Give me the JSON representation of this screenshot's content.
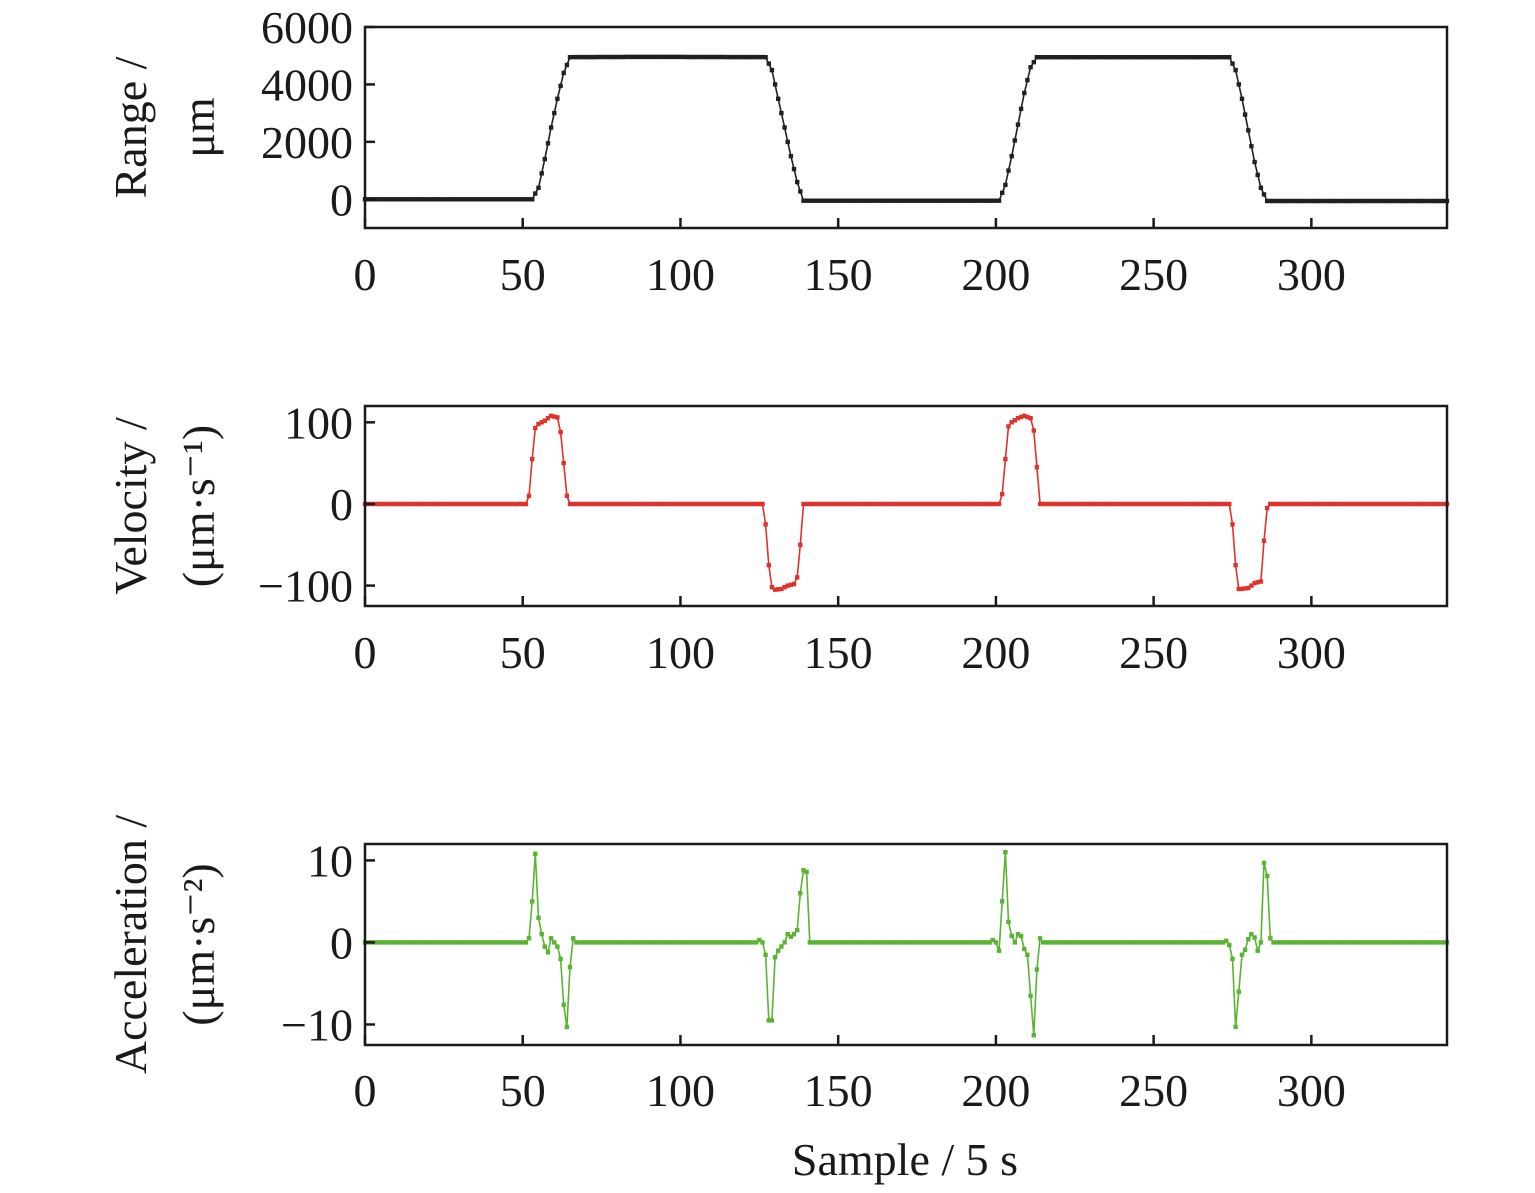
{
  "chart_data": [
    {
      "type": "line",
      "color": "#231f20",
      "ylabel_line1": "Range /",
      "ylabel_line2": "μm",
      "xlabel": "",
      "xlim": [
        0,
        343
      ],
      "ylim": [
        -1000,
        6000
      ],
      "xticks": [
        0,
        50,
        100,
        150,
        200,
        250,
        300
      ],
      "xtick_labels": [
        "0",
        "50",
        "100",
        "150",
        "200",
        "250",
        "300"
      ],
      "yticks": [
        0,
        2000,
        4000,
        6000
      ],
      "ytick_labels": [
        "0",
        "2000",
        "4000",
        "6000"
      ],
      "grid": false,
      "x": [
        0,
        53,
        55,
        57,
        59,
        61,
        63,
        65,
        90,
        127,
        129,
        131,
        133,
        135,
        137,
        139,
        170,
        201,
        203,
        205,
        207,
        209,
        211,
        213,
        245,
        274,
        276,
        278,
        280,
        282,
        284,
        286,
        343
      ],
      "values": [
        0,
        0,
        400,
        1400,
        2500,
        3500,
        4400,
        4950,
        4960,
        4950,
        4500,
        3500,
        2500,
        1500,
        600,
        -50,
        -50,
        -50,
        500,
        1500,
        2600,
        3700,
        4600,
        4950,
        4950,
        4950,
        4500,
        3500,
        2400,
        1300,
        400,
        -60,
        -60
      ]
    },
    {
      "type": "line",
      "color": "#e0322d",
      "ylabel_line1": "Velocity /",
      "ylabel_line2": "(μm·s⁻¹)",
      "xlabel": "",
      "xlim": [
        0,
        343
      ],
      "ylim": [
        -125,
        120
      ],
      "xticks": [
        0,
        50,
        100,
        150,
        200,
        250,
        300
      ],
      "xtick_labels": [
        "0",
        "50",
        "100",
        "150",
        "200",
        "250",
        "300"
      ],
      "yticks": [
        -100,
        0,
        100
      ],
      "ytick_labels": [
        "−100",
        "0",
        "100"
      ],
      "grid": false,
      "x": [
        0,
        51,
        52,
        53,
        54,
        55,
        57,
        59,
        61,
        62,
        63,
        64,
        65,
        126,
        127,
        128,
        129,
        130,
        132,
        134,
        136,
        137,
        138,
        139,
        201,
        202,
        203,
        204,
        205,
        207,
        209,
        211,
        212,
        213,
        214,
        274,
        275,
        276,
        277,
        278,
        280,
        282,
        284,
        285,
        286,
        287,
        343
      ],
      "values": [
        0,
        0,
        10,
        55,
        93,
        98,
        102,
        108,
        106,
        88,
        50,
        10,
        0,
        0,
        -25,
        -75,
        -102,
        -105,
        -104,
        -100,
        -98,
        -90,
        -50,
        0,
        0,
        12,
        55,
        95,
        100,
        105,
        108,
        105,
        90,
        45,
        0,
        0,
        -25,
        -75,
        -104,
        -104,
        -103,
        -97,
        -95,
        -45,
        -5,
        0,
        0
      ]
    },
    {
      "type": "line",
      "color": "#5ab432",
      "ylabel_line1": "Acceleration /",
      "ylabel_line2": "(μm·s⁻²)",
      "xlabel": "Sample / 5 s",
      "xlim": [
        0,
        343
      ],
      "ylim": [
        -12.5,
        12
      ],
      "xticks": [
        0,
        50,
        100,
        150,
        200,
        250,
        300
      ],
      "xtick_labels": [
        "0",
        "50",
        "100",
        "150",
        "200",
        "250",
        "300"
      ],
      "yticks": [
        -10,
        0,
        10
      ],
      "ytick_labels": [
        "−10",
        "0",
        "10"
      ],
      "grid": false,
      "x": [
        0,
        51,
        52,
        53,
        54,
        55,
        56,
        57,
        58,
        59,
        60,
        61,
        62,
        63,
        64,
        65,
        66,
        67,
        124,
        125,
        126,
        127,
        128,
        129,
        130,
        131,
        132,
        133,
        134,
        135,
        136,
        137,
        138,
        139,
        140,
        141,
        198,
        199,
        200,
        201,
        202,
        203,
        204,
        205,
        206,
        207,
        208,
        209,
        210,
        211,
        212,
        213,
        214,
        215,
        272,
        273,
        274,
        275,
        276,
        277,
        278,
        279,
        280,
        281,
        282,
        283,
        284,
        285,
        286,
        287,
        288,
        343
      ],
      "values": [
        0,
        0,
        0.5,
        5,
        10.8,
        3,
        1,
        -0.5,
        -1.2,
        0.5,
        0,
        -0.5,
        -2,
        -7.6,
        -10.3,
        -3,
        0.5,
        0,
        0,
        0.3,
        0,
        -1.5,
        -9.5,
        -9.5,
        -1.8,
        -1,
        -0.5,
        0,
        1,
        0.7,
        1,
        1.5,
        6,
        8.8,
        8.6,
        0,
        0,
        0.3,
        0,
        -1,
        5,
        11,
        2.5,
        0.8,
        0,
        1,
        0.8,
        -0.8,
        -1.5,
        -6.5,
        -11.3,
        -3.3,
        0.5,
        0,
        0,
        0.2,
        -0.3,
        -2,
        -10.3,
        -6,
        -1.5,
        -0.9,
        0.4,
        1,
        0.6,
        -1,
        0,
        9.7,
        8.1,
        0.5,
        0,
        0
      ]
    }
  ]
}
